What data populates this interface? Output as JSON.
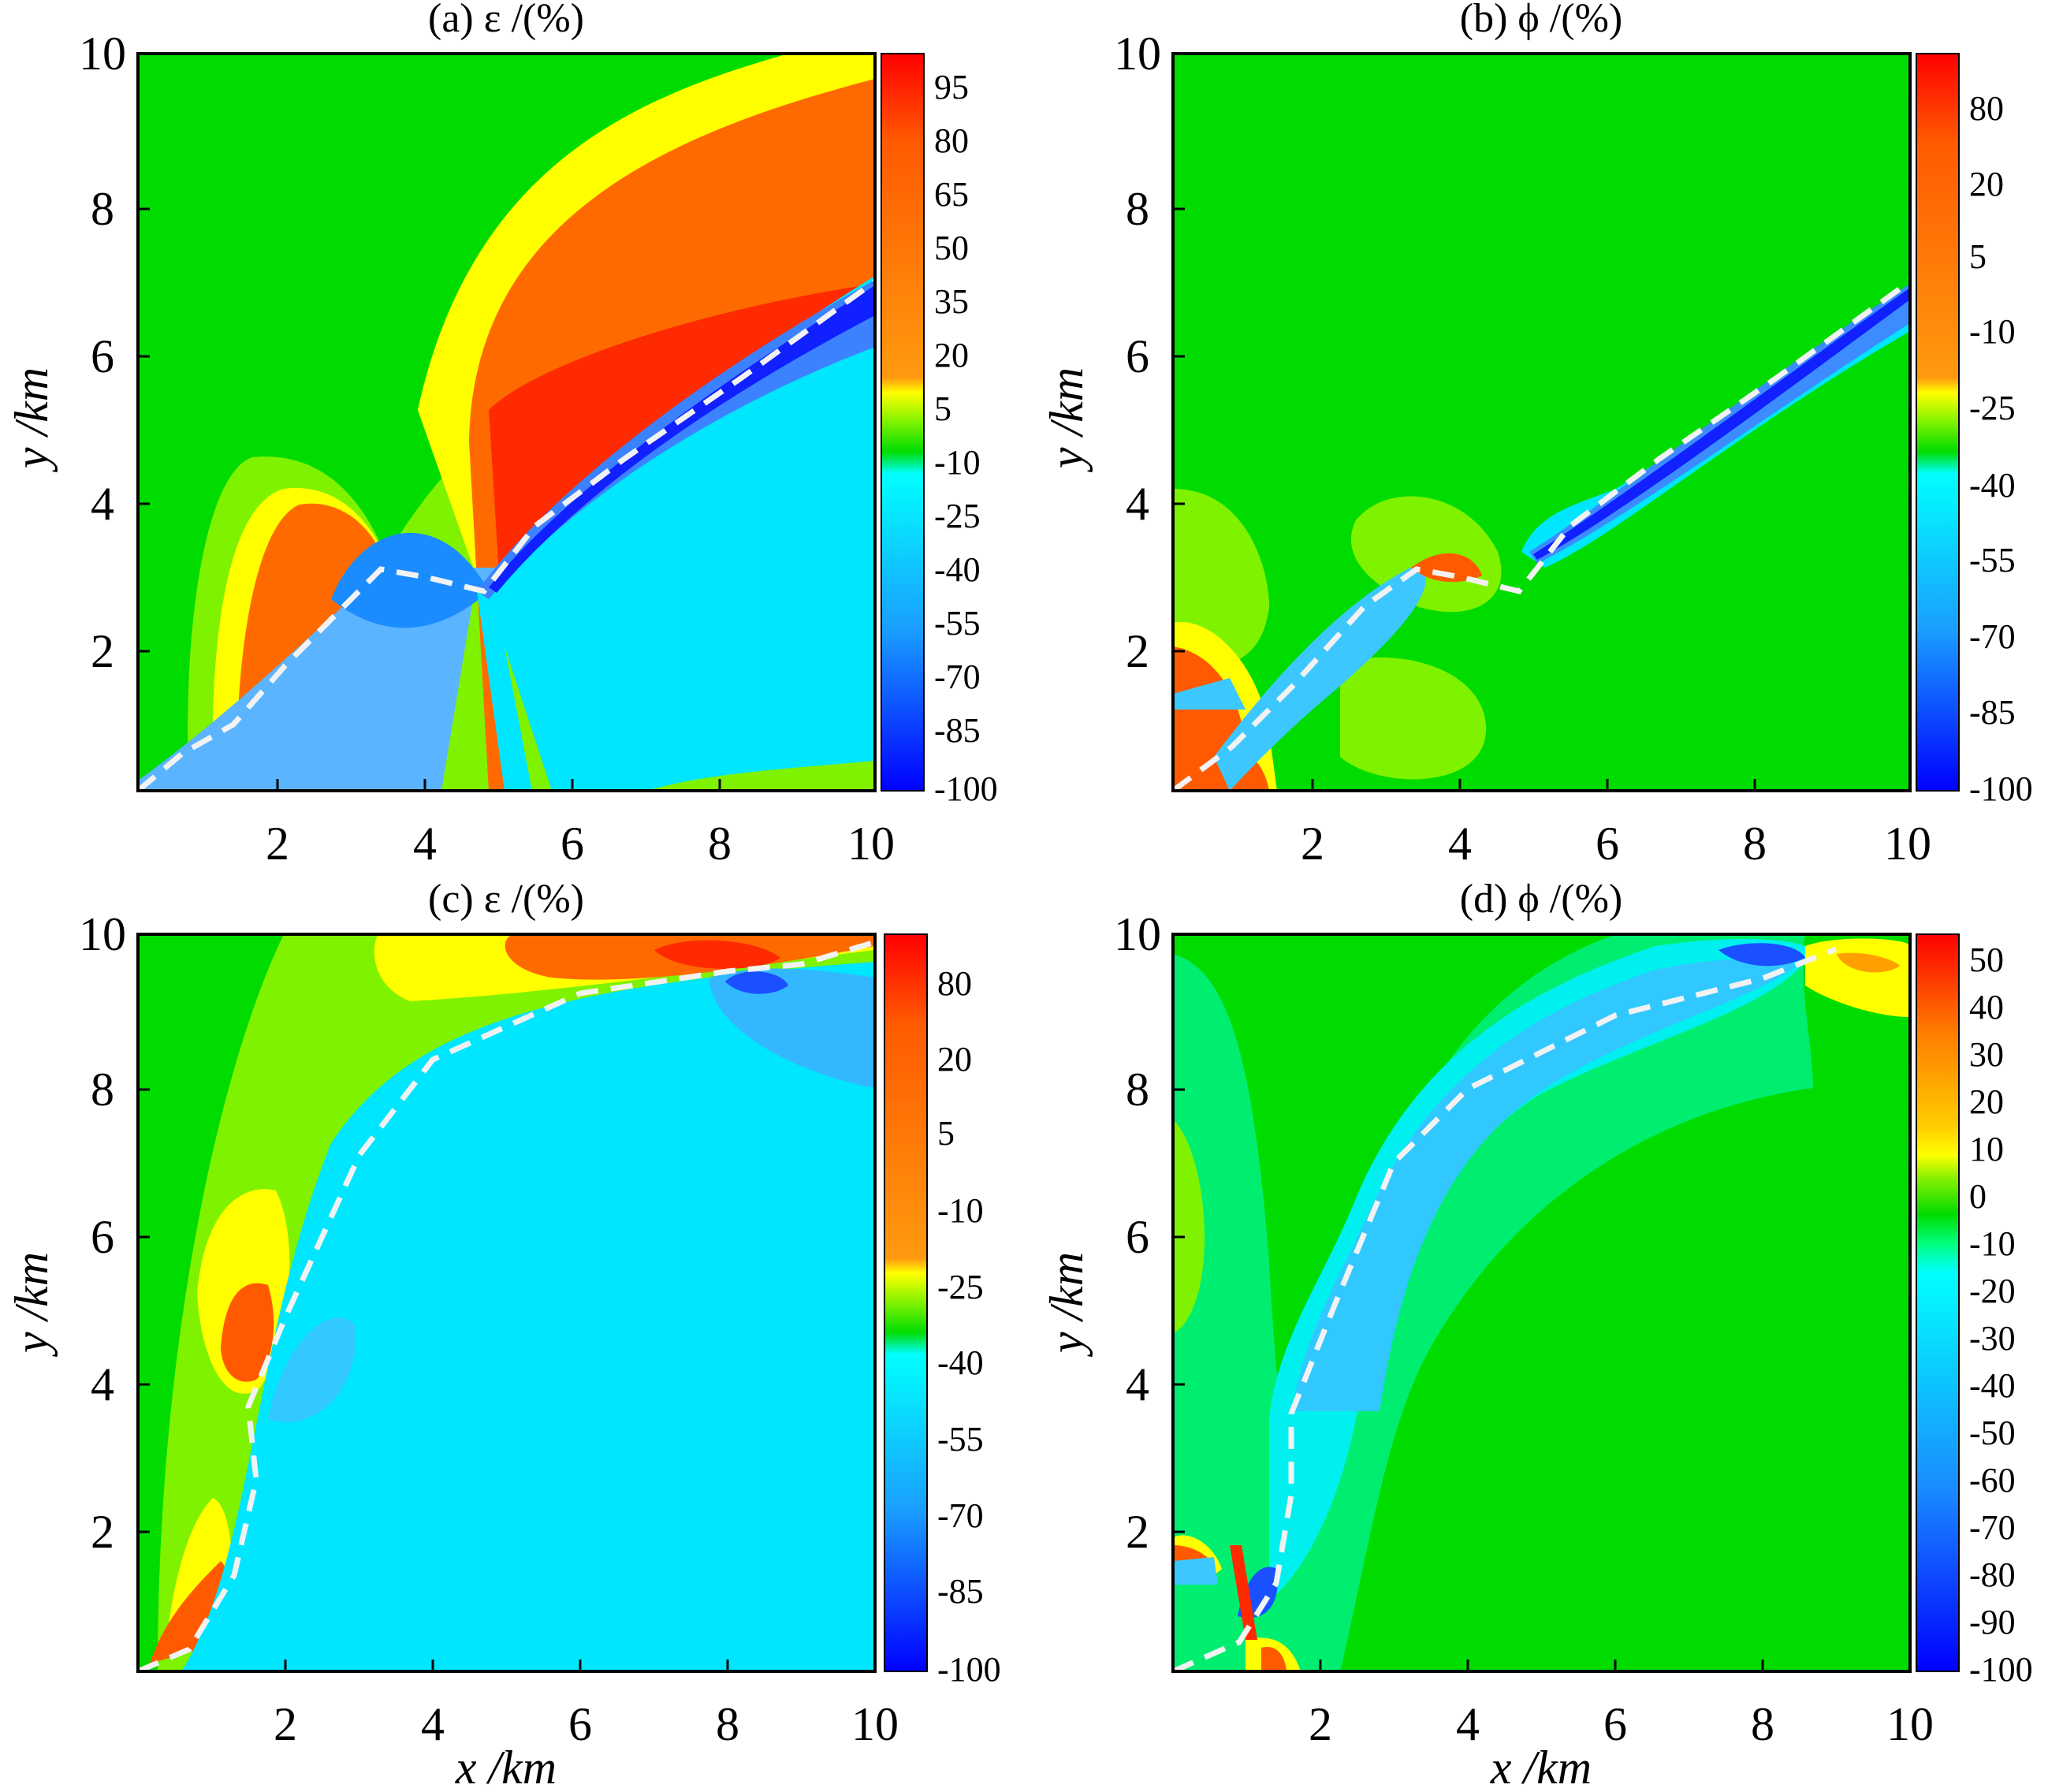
{
  "chart_data": [
    {
      "panel": "a",
      "type": "heatmap",
      "title": "(a) ε /(%)",
      "xlabel": "",
      "ylabel": "y /km",
      "xlim": [
        0,
        10
      ],
      "ylim": [
        0,
        10
      ],
      "xticks": [
        "2",
        "4",
        "6",
        "8",
        "10"
      ],
      "yticks": [
        "2",
        "4",
        "6",
        "8",
        "10"
      ],
      "colorbar": {
        "levels": [
          -100,
          100
        ],
        "labels": [
          "95",
          "80",
          "65",
          "50",
          "35",
          "20",
          "5",
          "-10",
          "-25",
          "-40",
          "-55",
          "-70",
          "-85",
          "-100"
        ]
      },
      "fracture_path": [
        [
          0,
          0
        ],
        [
          0.6,
          0.5
        ],
        [
          1.3,
          0.9
        ],
        [
          2.0,
          1.7
        ],
        [
          3.3,
          3.0
        ],
        [
          3.9,
          2.9
        ],
        [
          4.7,
          2.7
        ],
        [
          5.4,
          3.6
        ],
        [
          6.6,
          4.5
        ],
        [
          8.2,
          5.6
        ],
        [
          10,
          6.9
        ]
      ]
    },
    {
      "panel": "b",
      "type": "heatmap",
      "title": "(b) ϕ /(%)",
      "xlabel": "",
      "ylabel": "y /km",
      "xlim": [
        0,
        10
      ],
      "ylim": [
        0,
        10
      ],
      "xticks": [
        "2",
        "4",
        "6",
        "8",
        "10"
      ],
      "yticks": [
        "2",
        "4",
        "6",
        "8",
        "10"
      ],
      "colorbar": {
        "levels": [
          -100,
          100
        ],
        "labels": [
          "80",
          "20",
          "5",
          "-10",
          "-25",
          "-40",
          "-55",
          "-70",
          "-85",
          "-100"
        ]
      },
      "fracture_path": [
        [
          0,
          0
        ],
        [
          0.8,
          0.6
        ],
        [
          1.6,
          1.4
        ],
        [
          2.6,
          2.5
        ],
        [
          3.3,
          3.0
        ],
        [
          3.9,
          2.9
        ],
        [
          4.7,
          2.7
        ],
        [
          5.4,
          3.6
        ],
        [
          6.6,
          4.5
        ],
        [
          8.2,
          5.6
        ],
        [
          10,
          6.9
        ]
      ]
    },
    {
      "panel": "c",
      "type": "heatmap",
      "title": "(c) ε /(%)",
      "xlabel": "x /km",
      "ylabel": "y /km",
      "xlim": [
        0,
        10
      ],
      "ylim": [
        0,
        10
      ],
      "xticks": [
        "2",
        "4",
        "6",
        "8",
        "10"
      ],
      "yticks": [
        "2",
        "4",
        "6",
        "8",
        "10"
      ],
      "colorbar": {
        "levels": [
          -100,
          100
        ],
        "labels": [
          "80",
          "20",
          "5",
          "-10",
          "-25",
          "-40",
          "-55",
          "-70",
          "-85",
          "-100"
        ]
      },
      "fracture_path": [
        [
          0,
          0
        ],
        [
          0.7,
          0.3
        ],
        [
          1.3,
          1.3
        ],
        [
          1.6,
          2.6
        ],
        [
          1.5,
          3.6
        ],
        [
          2.0,
          4.8
        ],
        [
          3.0,
          7.0
        ],
        [
          4.0,
          8.3
        ],
        [
          6.0,
          9.2
        ],
        [
          8.0,
          9.5
        ],
        [
          9.0,
          9.6
        ],
        [
          10,
          9.9
        ]
      ]
    },
    {
      "panel": "d",
      "type": "heatmap",
      "title": "(d) ϕ /(%)",
      "xlabel": "x /km",
      "ylabel": "y /km",
      "xlim": [
        0,
        10
      ],
      "ylim": [
        0,
        10
      ],
      "xticks": [
        "2",
        "4",
        "6",
        "8",
        "10"
      ],
      "yticks": [
        "2",
        "4",
        "6",
        "8",
        "10"
      ],
      "colorbar": {
        "levels": [
          -100,
          50
        ],
        "labels": [
          "50",
          "40",
          "30",
          "20",
          "10",
          "0",
          "-10",
          "-20",
          "-30",
          "-40",
          "-50",
          "-60",
          "-70",
          "-80",
          "-90",
          "-100"
        ]
      },
      "fracture_path": [
        [
          0,
          0
        ],
        [
          0.9,
          0.4
        ],
        [
          1.4,
          1.2
        ],
        [
          1.6,
          2.4
        ],
        [
          1.6,
          3.5
        ],
        [
          2.2,
          5.0
        ],
        [
          3.0,
          6.9
        ],
        [
          4.0,
          7.9
        ],
        [
          6.0,
          8.9
        ],
        [
          8.0,
          9.4
        ],
        [
          9.0,
          9.8
        ]
      ]
    }
  ]
}
